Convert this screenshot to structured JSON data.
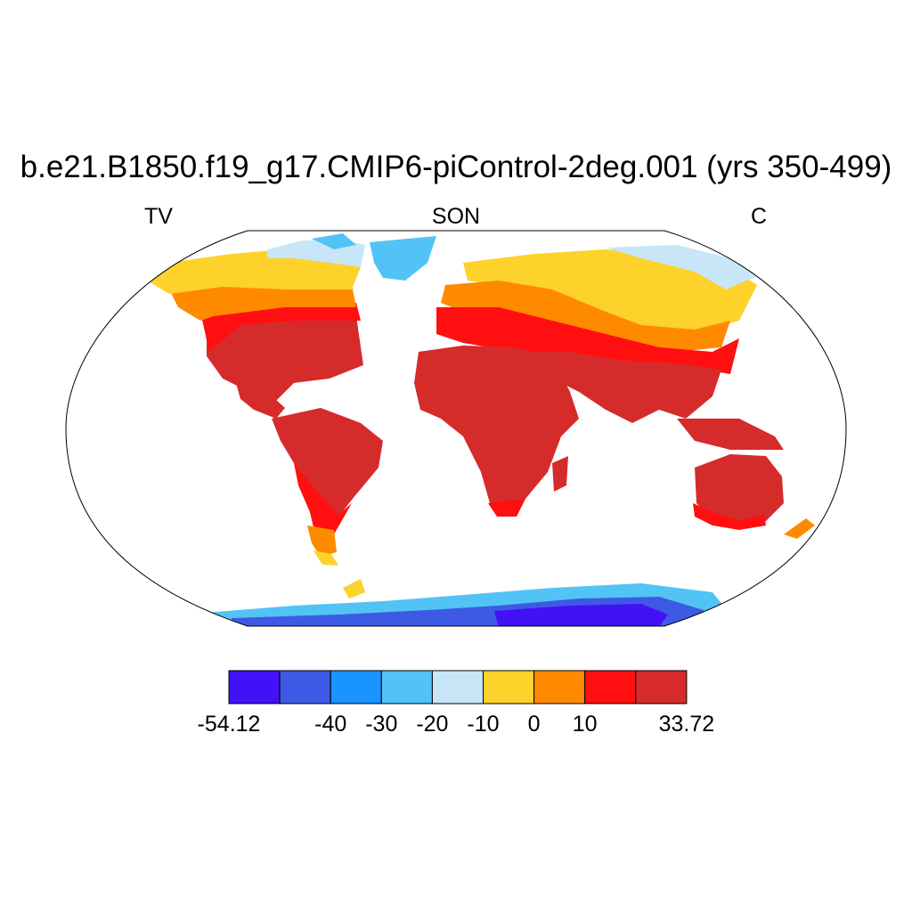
{
  "title": "b.e21.B1850.f19_g17.CMIP6-piControl-2deg.001 (yrs 350-499)",
  "left_string": "TV",
  "center_string": "SON",
  "right_string": "C",
  "colorbar": {
    "colors": [
      "#4211f5",
      "#3d5ae4",
      "#1a94ff",
      "#52c3f5",
      "#c8e6f8",
      "#fdd22a",
      "#ff8a00",
      "#ff0f0f",
      "#d62b2b"
    ],
    "tick_labels": [
      "-54.12",
      "-40",
      "-30",
      "-20",
      "-10",
      "0",
      "10",
      "33.72"
    ]
  },
  "map_legend": {
    "min": -54.12,
    "max": 33.72,
    "levels": [
      -40,
      -30,
      -20,
      -10,
      0,
      10
    ]
  }
}
